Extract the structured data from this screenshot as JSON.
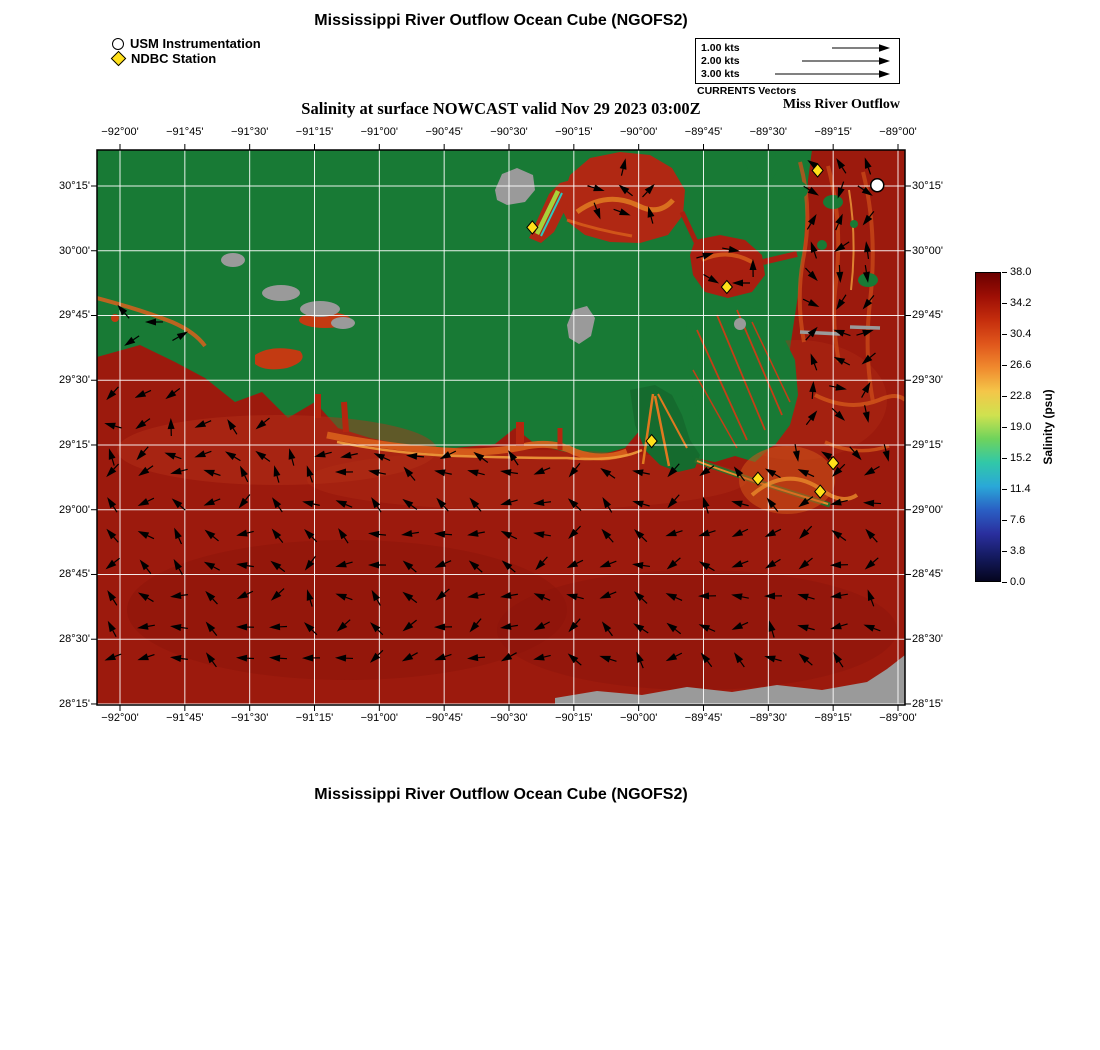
{
  "header": {
    "title": "Mississippi River Outflow Ocean Cube (NGOFS2)",
    "legend_usm": "USM Instrumentation",
    "legend_ndbc": "NDBC Station",
    "vector_rows": [
      "1.00 kts",
      "2.00 kts",
      "3.00 kts"
    ],
    "vector_caption": "CURRENTS Vectors",
    "outflow_label": "Miss River Outflow"
  },
  "footer": {
    "title": "Mississippi River Outflow Ocean Cube (NGOFS2)"
  },
  "chart_data": {
    "type": "heatmap",
    "title": "Salinity at surface NOWCAST valid Nov 29 2023 03:00Z",
    "field": "sea surface salinity with surface current vectors",
    "x_axis": {
      "lim": [
        -92.0887,
        -88.973
      ],
      "values": [
        -92.0,
        -91.75,
        -91.5,
        -91.25,
        -91.0,
        -90.75,
        -90.5,
        -90.25,
        -90.0,
        -89.75,
        -89.5,
        -89.25,
        -89.0
      ],
      "labels": [
        "−92°00'",
        "−91°45'",
        "−91°30'",
        "−91°15'",
        "−91°00'",
        "−90°45'",
        "−90°30'",
        "−90°15'",
        "−90°00'",
        "−89°45'",
        "−89°30'",
        "−89°15'",
        "−89°00'"
      ]
    },
    "y_axis": {
      "lim": [
        28.246,
        30.389
      ],
      "values": [
        30.25,
        30.0,
        29.75,
        29.5,
        29.25,
        29.0,
        28.75,
        28.5,
        28.25
      ],
      "labels": [
        "30°15'",
        "30°00'",
        "29°45'",
        "29°30'",
        "29°15'",
        "29°00'",
        "28°45'",
        "28°30'",
        "28°15'"
      ]
    },
    "colorbar": {
      "label": "Salinity (psu)",
      "range": [
        0,
        38
      ],
      "ticks": [
        "38.0",
        "34.2",
        "30.4",
        "26.6",
        "22.8",
        "19.0",
        "15.2",
        "11.4",
        "7.6",
        "3.8",
        "0.0"
      ],
      "colors_top_to_bottom": [
        "#6b0000",
        "#9e0f05",
        "#c52e0d",
        "#e0571c",
        "#f08a2e",
        "#f4c649",
        "#cfe24f",
        "#6fd35c",
        "#31c8a8",
        "#2aa8d8",
        "#2a5fc4",
        "#2a2f9e",
        "#141a5e",
        "#05051f"
      ]
    },
    "stations": {
      "usm_instrumentation": [
        {
          "lon": -89.08,
          "lat": 30.253
        }
      ],
      "ndbc": [
        {
          "lon": -90.41,
          "lat": 30.09
        },
        {
          "lon": -89.66,
          "lat": 29.86
        },
        {
          "lon": -89.31,
          "lat": 30.31
        },
        {
          "lon": -89.95,
          "lat": 29.265
        },
        {
          "lon": -89.54,
          "lat": 29.12
        },
        {
          "lon": -89.25,
          "lat": 29.18
        },
        {
          "lon": -89.3,
          "lat": 29.07
        }
      ]
    },
    "colors": {
      "land": "#187a35",
      "land_outside_domain": "#9a9a9a",
      "water_base": "#9c1a0d",
      "plume": "#d9601c",
      "grid": "#ffffff",
      "vectors": "#000000",
      "ndbc_marker": "#ffe01a",
      "usm_marker": "#ffffff"
    }
  }
}
